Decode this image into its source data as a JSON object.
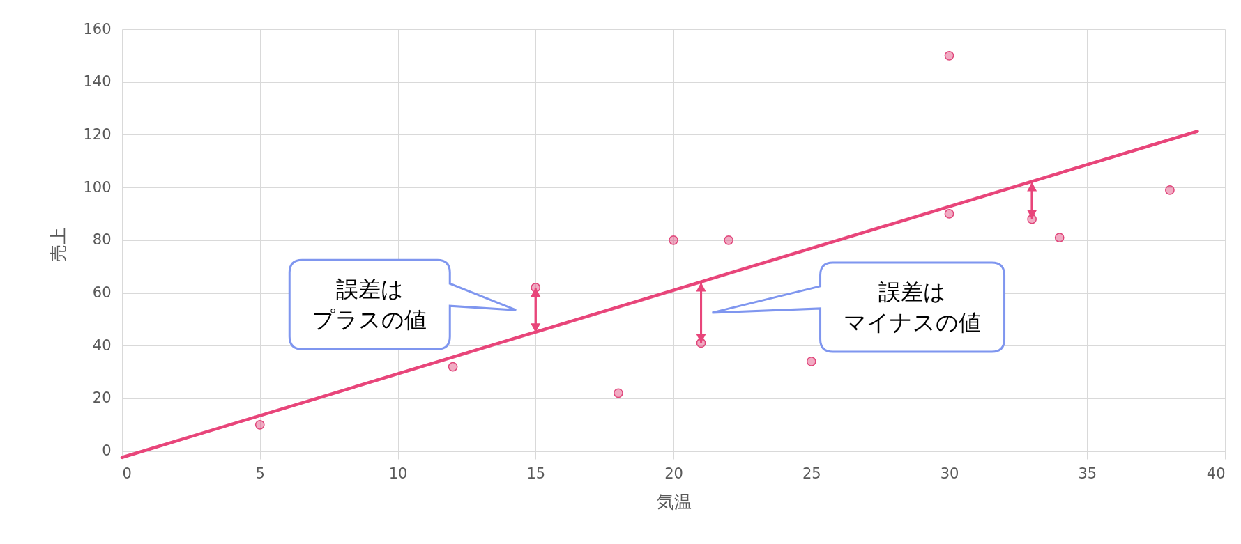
{
  "chart_data": {
    "type": "scatter",
    "xlabel": "気温",
    "ylabel": "売上",
    "xlim": [
      0,
      40
    ],
    "ylim": [
      -3,
      160
    ],
    "xticks": [
      0,
      5,
      10,
      15,
      20,
      25,
      30,
      35,
      40
    ],
    "yticks": [
      0,
      20,
      40,
      60,
      80,
      100,
      120,
      140,
      160
    ],
    "grid": true,
    "series": [
      {
        "marker": "circle",
        "color": "#e0457a",
        "x": [
          5,
          12,
          15,
          18,
          20,
          21,
          22,
          25,
          30,
          30,
          33,
          34,
          38
        ],
        "values": [
          10,
          32,
          62,
          22,
          80,
          41,
          80,
          34,
          150,
          90,
          88,
          81,
          99
        ],
        "errors": [
          null,
          null,
          [
            45,
            62
          ],
          null,
          null,
          [
            41,
            64
          ],
          null,
          null,
          null,
          null,
          [
            88,
            102
          ],
          null,
          null
        ]
      },
      {
        "type": "line",
        "color": "#e8457a",
        "x": [
          0,
          39
        ],
        "values": [
          -2.4,
          121.3
        ]
      }
    ],
    "annotations": [
      "誤差はプラスの値",
      "誤差はマイナスの値"
    ]
  }
}
